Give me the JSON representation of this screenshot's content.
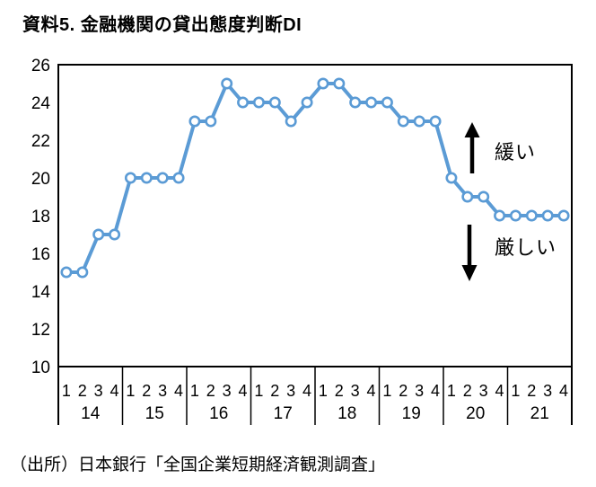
{
  "title": "資料5. 金融機関の貸出態度判断DI",
  "source": "（出所）日本銀行「全国企業短期経済観測調査」",
  "annotations": {
    "up_label": "緩い",
    "down_label": "厳しい"
  },
  "chart_data": {
    "type": "line",
    "title": "資料5. 金融機関の貸出態度判断DI",
    "x_years": [
      "14",
      "15",
      "16",
      "17",
      "18",
      "19",
      "20",
      "21"
    ],
    "x_quarters": [
      "1",
      "2",
      "3",
      "4"
    ],
    "series": [
      {
        "name": "金融機関の貸出態度判断DI",
        "values": [
          15,
          15,
          17,
          17,
          20,
          20,
          20,
          20,
          23,
          23,
          25,
          24,
          24,
          24,
          23,
          24,
          25,
          25,
          24,
          24,
          24,
          23,
          23,
          23,
          20,
          19,
          19,
          18,
          18,
          18,
          18,
          18
        ]
      }
    ],
    "ylim": [
      10,
      26
    ],
    "ytick_step": 2,
    "grid": false,
    "legend": "none",
    "line_color": "#5B9BD5",
    "marker_fill": "#ffffff",
    "axis_color": "#000000"
  }
}
